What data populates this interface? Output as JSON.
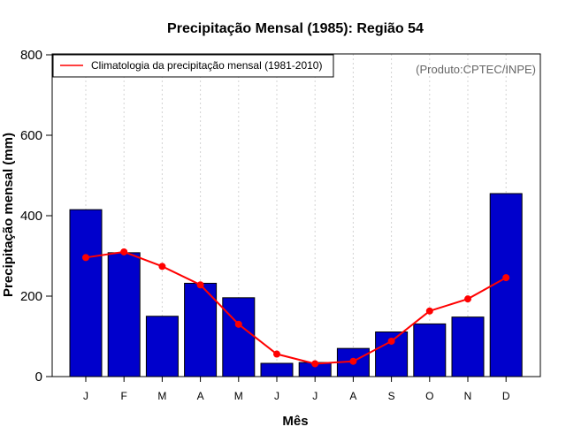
{
  "chart_data": {
    "type": "bar",
    "title": "Precipitação Mensal (1985): Região 54",
    "xlabel": "Mês",
    "ylabel": "Precipitação mensal (mm)",
    "categories": [
      "J",
      "F",
      "M",
      "A",
      "M",
      "J",
      "J",
      "A",
      "S",
      "O",
      "N",
      "D"
    ],
    "ylim": [
      0,
      800
    ],
    "yticks": [
      0,
      200,
      400,
      600,
      800
    ],
    "grid": "vertical dotted",
    "legend_position": "top-left",
    "series": [
      {
        "name": "Precipitação mensal 1985",
        "type": "bar",
        "color": "#0000CC",
        "values": [
          415,
          308,
          150,
          232,
          196,
          33,
          35,
          70,
          111,
          131,
          148,
          455
        ]
      },
      {
        "name": "Climatologia da precipitação mensal (1981-2010)",
        "type": "line",
        "color": "#FF0000",
        "values": [
          296,
          310,
          274,
          228,
          130,
          56,
          32,
          38,
          88,
          163,
          193,
          246
        ]
      }
    ],
    "annotation": "(Produto:CPTEC/INPE)"
  }
}
